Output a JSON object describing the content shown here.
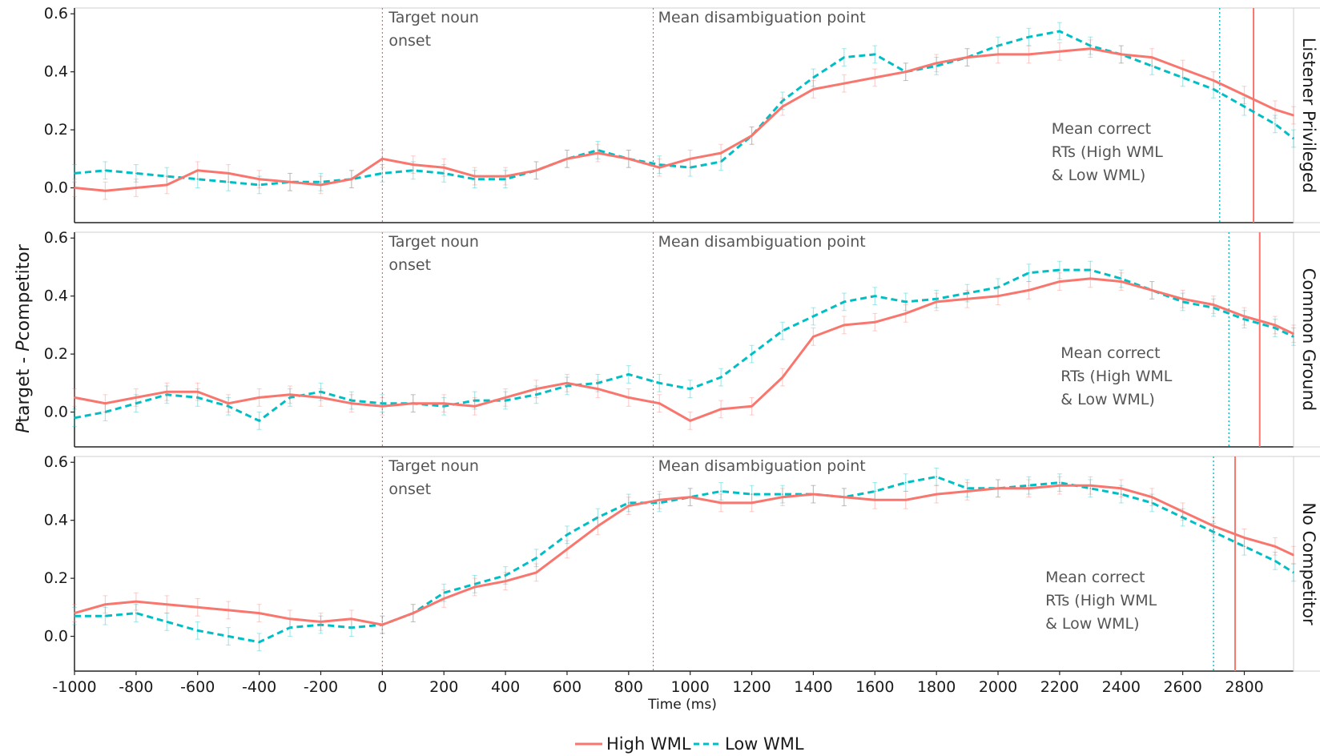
{
  "chart_data": {
    "type": "line",
    "ylabel_prefix_1": "P",
    "ylabel_word_1": "target - ",
    "ylabel_prefix_2": "P",
    "ylabel_word_2": "competitor",
    "xlabel": "Time (ms)",
    "xlim": [
      -1000,
      2960
    ],
    "ylim": [
      -0.12,
      0.62
    ],
    "x_ticks": [
      -1000,
      -800,
      -600,
      -400,
      -200,
      0,
      200,
      400,
      600,
      800,
      1000,
      1200,
      1400,
      1600,
      1800,
      2000,
      2200,
      2400,
      2600,
      2800
    ],
    "y_ticks": [
      "0.0",
      "0.2",
      "0.4",
      "0.6"
    ],
    "legend_position": "bottom",
    "legend": [
      {
        "name": "High WML",
        "color": "#F8766D",
        "style": "solid"
      },
      {
        "name": "Low WML",
        "color": "#00BFC4",
        "style": "dashed"
      }
    ],
    "error_bars": "±0.03 approx",
    "annotation_onset_1": "Target noun",
    "annotation_onset_2": "onset",
    "annotation_disamb": "Mean disambiguation point",
    "annotation_rt_1": "Mean correct",
    "annotation_rt_2": "RTs (High WML",
    "annotation_rt_3": "& Low WML)",
    "onset_x": 0,
    "disambiguation_x": 880,
    "panels": [
      {
        "strip": "Listener Privileged",
        "rt_high": 2830,
        "rt_low": 2720,
        "series": [
          {
            "name": "High WML",
            "x": [
              -1000,
              -900,
              -800,
              -700,
              -600,
              -500,
              -400,
              -300,
              -200,
              -100,
              0,
              100,
              200,
              300,
              400,
              500,
              600,
              700,
              800,
              900,
              1000,
              1100,
              1200,
              1300,
              1400,
              1500,
              1600,
              1700,
              1800,
              1900,
              2000,
              2100,
              2200,
              2300,
              2400,
              2500,
              2600,
              2700,
              2800,
              2900,
              2960
            ],
            "y": [
              0.0,
              -0.01,
              0.0,
              0.01,
              0.06,
              0.05,
              0.03,
              0.02,
              0.01,
              0.03,
              0.1,
              0.08,
              0.07,
              0.04,
              0.04,
              0.06,
              0.1,
              0.12,
              0.1,
              0.07,
              0.1,
              0.12,
              0.18,
              0.28,
              0.34,
              0.36,
              0.38,
              0.4,
              0.43,
              0.45,
              0.46,
              0.46,
              0.47,
              0.48,
              0.46,
              0.45,
              0.41,
              0.37,
              0.32,
              0.27,
              0.25
            ]
          },
          {
            "name": "Low WML",
            "x": [
              -1000,
              -900,
              -800,
              -700,
              -600,
              -500,
              -400,
              -300,
              -200,
              -100,
              0,
              100,
              200,
              300,
              400,
              500,
              600,
              700,
              800,
              900,
              1000,
              1100,
              1200,
              1300,
              1400,
              1500,
              1600,
              1700,
              1800,
              1900,
              2000,
              2100,
              2200,
              2300,
              2400,
              2500,
              2600,
              2700,
              2800,
              2900,
              2960
            ],
            "y": [
              0.05,
              0.06,
              0.05,
              0.04,
              0.03,
              0.02,
              0.01,
              0.02,
              0.02,
              0.03,
              0.05,
              0.06,
              0.05,
              0.03,
              0.03,
              0.06,
              0.1,
              0.13,
              0.1,
              0.08,
              0.07,
              0.09,
              0.18,
              0.3,
              0.38,
              0.45,
              0.46,
              0.4,
              0.42,
              0.45,
              0.49,
              0.52,
              0.54,
              0.49,
              0.46,
              0.42,
              0.38,
              0.34,
              0.28,
              0.22,
              0.17
            ]
          }
        ]
      },
      {
        "strip": "Common Ground",
        "rt_high": 2850,
        "rt_low": 2750,
        "series": [
          {
            "name": "High WML",
            "x": [
              -1000,
              -900,
              -800,
              -700,
              -600,
              -500,
              -400,
              -300,
              -200,
              -100,
              0,
              100,
              200,
              300,
              400,
              500,
              600,
              700,
              800,
              900,
              1000,
              1100,
              1200,
              1300,
              1400,
              1500,
              1600,
              1700,
              1800,
              1900,
              2000,
              2100,
              2200,
              2300,
              2400,
              2500,
              2600,
              2700,
              2800,
              2900,
              2960
            ],
            "y": [
              0.05,
              0.03,
              0.05,
              0.07,
              0.07,
              0.03,
              0.05,
              0.06,
              0.05,
              0.03,
              0.02,
              0.03,
              0.03,
              0.02,
              0.05,
              0.08,
              0.1,
              0.08,
              0.05,
              0.03,
              -0.03,
              0.01,
              0.02,
              0.12,
              0.26,
              0.3,
              0.31,
              0.34,
              0.38,
              0.39,
              0.4,
              0.42,
              0.45,
              0.46,
              0.45,
              0.42,
              0.39,
              0.37,
              0.33,
              0.3,
              0.27
            ]
          },
          {
            "name": "Low WML",
            "x": [
              -1000,
              -900,
              -800,
              -700,
              -600,
              -500,
              -400,
              -300,
              -200,
              -100,
              0,
              100,
              200,
              300,
              400,
              500,
              600,
              700,
              800,
              900,
              1000,
              1100,
              1200,
              1300,
              1400,
              1500,
              1600,
              1700,
              1800,
              1900,
              2000,
              2100,
              2200,
              2300,
              2400,
              2500,
              2600,
              2700,
              2800,
              2900,
              2960
            ],
            "y": [
              -0.02,
              0.0,
              0.03,
              0.06,
              0.05,
              0.02,
              -0.03,
              0.05,
              0.07,
              0.04,
              0.03,
              0.03,
              0.02,
              0.04,
              0.04,
              0.06,
              0.09,
              0.1,
              0.13,
              0.1,
              0.08,
              0.12,
              0.2,
              0.28,
              0.33,
              0.38,
              0.4,
              0.38,
              0.39,
              0.41,
              0.43,
              0.48,
              0.49,
              0.49,
              0.46,
              0.42,
              0.38,
              0.36,
              0.32,
              0.29,
              0.26
            ]
          }
        ]
      },
      {
        "strip": "No Competitor",
        "rt_high": 2770,
        "rt_low": 2700,
        "series": [
          {
            "name": "High WML",
            "x": [
              -1000,
              -900,
              -800,
              -700,
              -600,
              -500,
              -400,
              -300,
              -200,
              -100,
              0,
              100,
              200,
              300,
              400,
              500,
              600,
              700,
              800,
              900,
              1000,
              1100,
              1200,
              1300,
              1400,
              1500,
              1600,
              1700,
              1800,
              1900,
              2000,
              2100,
              2200,
              2300,
              2400,
              2500,
              2600,
              2700,
              2800,
              2900,
              2960
            ],
            "y": [
              0.08,
              0.11,
              0.12,
              0.11,
              0.1,
              0.09,
              0.08,
              0.06,
              0.05,
              0.06,
              0.04,
              0.08,
              0.13,
              0.17,
              0.19,
              0.22,
              0.3,
              0.38,
              0.45,
              0.47,
              0.48,
              0.46,
              0.46,
              0.48,
              0.49,
              0.48,
              0.47,
              0.47,
              0.49,
              0.5,
              0.51,
              0.51,
              0.52,
              0.52,
              0.51,
              0.48,
              0.43,
              0.38,
              0.34,
              0.31,
              0.28
            ]
          },
          {
            "name": "Low WML",
            "x": [
              -1000,
              -900,
              -800,
              -700,
              -600,
              -500,
              -400,
              -300,
              -200,
              -100,
              0,
              100,
              200,
              300,
              400,
              500,
              600,
              700,
              800,
              900,
              1000,
              1100,
              1200,
              1300,
              1400,
              1500,
              1600,
              1700,
              1800,
              1900,
              2000,
              2100,
              2200,
              2300,
              2400,
              2500,
              2600,
              2700,
              2800,
              2900,
              2960
            ],
            "y": [
              0.07,
              0.07,
              0.08,
              0.05,
              0.02,
              0.0,
              -0.02,
              0.03,
              0.04,
              0.03,
              0.04,
              0.08,
              0.15,
              0.18,
              0.21,
              0.27,
              0.35,
              0.41,
              0.46,
              0.46,
              0.48,
              0.5,
              0.49,
              0.49,
              0.49,
              0.48,
              0.5,
              0.53,
              0.55,
              0.51,
              0.51,
              0.52,
              0.53,
              0.51,
              0.49,
              0.46,
              0.41,
              0.36,
              0.31,
              0.26,
              0.22
            ]
          }
        ]
      }
    ]
  }
}
